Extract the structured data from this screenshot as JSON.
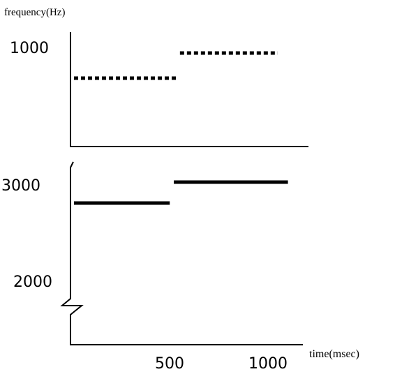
{
  "axis_labels": {
    "y": "frequency(Hz)",
    "x": "time(msec)"
  },
  "upper_panel": {
    "tick_label": "1000"
  },
  "lower_panel": {
    "tick_labels": [
      "3000",
      "2000"
    ]
  },
  "x_tick_labels": [
    "500",
    "1000"
  ],
  "chart_data": {
    "type": "line",
    "xlabel": "time(msec)",
    "ylabel": "frequency(Hz)",
    "x_ticks": [
      500,
      1000
    ],
    "panels": [
      {
        "y_ticks": [
          1000
        ],
        "style": "dotted",
        "segments": [
          {
            "x": [
              0,
              500
            ],
            "y": [
              800,
              800
            ]
          },
          {
            "x": [
              520,
              1000
            ],
            "y": [
              1000,
              1000
            ]
          }
        ]
      },
      {
        "y_ticks": [
          2000,
          3000
        ],
        "axis_break": true,
        "style": "solid",
        "segments": [
          {
            "x": [
              0,
              470
            ],
            "y": [
              2800,
              2800
            ]
          },
          {
            "x": [
              490,
              1050
            ],
            "y": [
              3000,
              3000
            ]
          }
        ]
      }
    ]
  }
}
